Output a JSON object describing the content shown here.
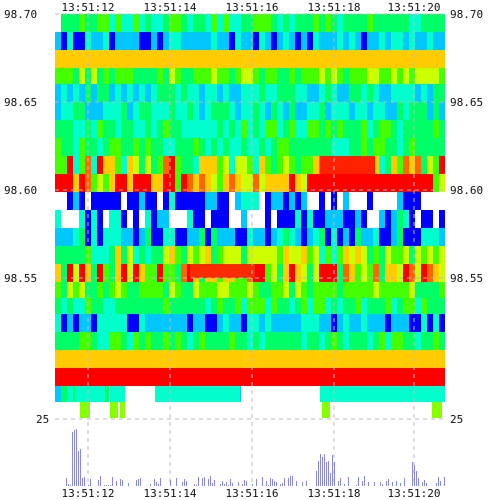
{
  "chart_data": {
    "type": "heatmap",
    "title": "",
    "xlabel": "",
    "ylabel": "",
    "x_ticks": [
      "13:51:12",
      "13:51:14",
      "13:51:16",
      "13:51:18",
      "13:51:20"
    ],
    "price_ticks": [
      "98.70",
      "98.65",
      "98.60",
      "98.55"
    ],
    "volume_tick": "25",
    "price_range": [
      98.5,
      98.7
    ],
    "volume_range": [
      0,
      25
    ],
    "grid": true,
    "grid_style": "dashed",
    "palette": [
      "#0000ff",
      "#00c8ff",
      "#00ffcc",
      "#00ff66",
      "#44ff00",
      "#ccff00",
      "#ffcc00",
      "#ff6600",
      "#ff0000"
    ],
    "volume_bar_color": "#8888dd"
  }
}
